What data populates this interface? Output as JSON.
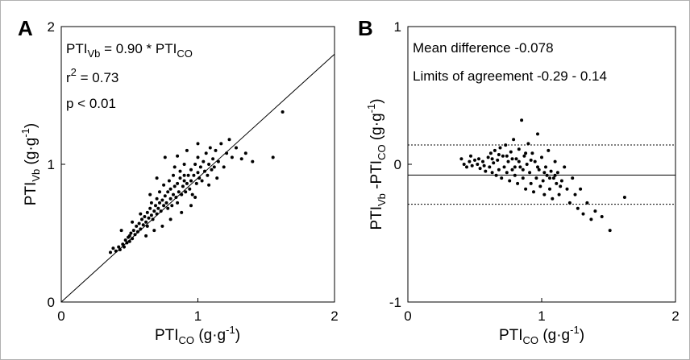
{
  "chart_data": [
    {
      "type": "scatter",
      "panel": "A",
      "xlabel": {
        "main": "PTI",
        "sub": "CO",
        "unit": " (g·g",
        "sup": "-1",
        "close": ")"
      },
      "ylabel": {
        "main": "PTI",
        "sub": "Vb",
        "unit": " (g·g",
        "sup": "-1",
        "close": ")"
      },
      "xlim": [
        0,
        2
      ],
      "ylim": [
        0,
        2
      ],
      "xticks": [
        "0",
        "1",
        "2"
      ],
      "yticks": [
        "0",
        "1",
        "2"
      ],
      "grid": false,
      "annotations": {
        "eq_a": "PTI",
        "eq_sub1": "Vb",
        "eq_b": " = 0.90 * PTI",
        "eq_sub2": "CO",
        "r2_a": "r",
        "r2_sup": "2",
        "r2_b": " = 0.73",
        "p": "p < 0.01"
      },
      "regression_slope": 0.9,
      "points": [
        [
          0.36,
          0.36
        ],
        [
          0.38,
          0.39
        ],
        [
          0.4,
          0.37
        ],
        [
          0.42,
          0.4
        ],
        [
          0.43,
          0.38
        ],
        [
          0.45,
          0.42
        ],
        [
          0.46,
          0.4
        ],
        [
          0.47,
          0.45
        ],
        [
          0.48,
          0.43
        ],
        [
          0.49,
          0.47
        ],
        [
          0.5,
          0.44
        ],
        [
          0.5,
          0.48
        ],
        [
          0.51,
          0.5
        ],
        [
          0.52,
          0.46
        ],
        [
          0.53,
          0.52
        ],
        [
          0.54,
          0.49
        ],
        [
          0.55,
          0.55
        ],
        [
          0.56,
          0.51
        ],
        [
          0.57,
          0.57
        ],
        [
          0.58,
          0.53
        ],
        [
          0.59,
          0.6
        ],
        [
          0.6,
          0.56
        ],
        [
          0.61,
          0.62
        ],
        [
          0.62,
          0.58
        ],
        [
          0.63,
          0.65
        ],
        [
          0.63,
          0.55
        ],
        [
          0.64,
          0.61
        ],
        [
          0.65,
          0.68
        ],
        [
          0.66,
          0.63
        ],
        [
          0.66,
          0.72
        ],
        [
          0.67,
          0.6
        ],
        [
          0.68,
          0.66
        ],
        [
          0.69,
          0.7
        ],
        [
          0.7,
          0.64
        ],
        [
          0.7,
          0.75
        ],
        [
          0.71,
          0.68
        ],
        [
          0.72,
          0.72
        ],
        [
          0.72,
          0.8
        ],
        [
          0.73,
          0.66
        ],
        [
          0.74,
          0.74
        ],
        [
          0.75,
          0.7
        ],
        [
          0.75,
          0.85
        ],
        [
          0.76,
          0.77
        ],
        [
          0.77,
          0.72
        ],
        [
          0.78,
          0.8
        ],
        [
          0.78,
          0.68
        ],
        [
          0.79,
          0.88
        ],
        [
          0.8,
          0.75
        ],
        [
          0.8,
          0.82
        ],
        [
          0.81,
          0.7
        ],
        [
          0.82,
          0.78
        ],
        [
          0.82,
          0.92
        ],
        [
          0.83,
          0.84
        ],
        [
          0.84,
          0.76
        ],
        [
          0.85,
          0.86
        ],
        [
          0.85,
          0.72
        ],
        [
          0.86,
          0.8
        ],
        [
          0.87,
          0.9
        ],
        [
          0.87,
          0.95
        ],
        [
          0.88,
          0.78
        ],
        [
          0.89,
          0.84
        ],
        [
          0.9,
          0.88
        ],
        [
          0.9,
          1.0
        ],
        [
          0.91,
          0.8
        ],
        [
          0.92,
          0.86
        ],
        [
          0.93,
          0.92
        ],
        [
          0.94,
          0.82
        ],
        [
          0.95,
          0.96
        ],
        [
          0.95,
          0.88
        ],
        [
          0.96,
          0.78
        ],
        [
          0.97,
          0.92
        ],
        [
          0.98,
          1.0
        ],
        [
          0.99,
          0.86
        ],
        [
          1.0,
          0.94
        ],
        [
          1.0,
          1.05
        ],
        [
          1.01,
          0.9
        ],
        [
          1.02,
          0.98
        ],
        [
          1.03,
          0.88
        ],
        [
          1.04,
          1.02
        ],
        [
          1.05,
          0.95
        ],
        [
          1.06,
          1.08
        ],
        [
          1.07,
          0.92
        ],
        [
          1.08,
          1.0
        ],
        [
          1.09,
          1.12
        ],
        [
          1.1,
          0.96
        ],
        [
          1.11,
          1.04
        ],
        [
          1.12,
          0.98
        ],
        [
          1.13,
          1.1
        ],
        [
          1.15,
          1.02
        ],
        [
          1.17,
          1.15
        ],
        [
          1.19,
          0.98
        ],
        [
          1.21,
          1.08
        ],
        [
          1.23,
          1.18
        ],
        [
          1.25,
          1.05
        ],
        [
          1.28,
          1.12
        ],
        [
          1.32,
          1.04
        ],
        [
          1.35,
          1.08
        ],
        [
          1.4,
          1.02
        ],
        [
          1.55,
          1.05
        ],
        [
          1.62,
          1.38
        ],
        [
          0.44,
          0.52
        ],
        [
          0.52,
          0.58
        ],
        [
          0.58,
          0.64
        ],
        [
          0.65,
          0.78
        ],
        [
          0.7,
          0.9
        ],
        [
          0.76,
          1.05
        ],
        [
          0.85,
          1.06
        ],
        [
          0.92,
          1.1
        ],
        [
          1.0,
          1.15
        ],
        [
          0.95,
          0.7
        ],
        [
          0.88,
          0.65
        ],
        [
          0.8,
          0.6
        ],
        [
          0.74,
          0.55
        ],
        [
          0.68,
          0.52
        ],
        [
          0.62,
          0.48
        ],
        [
          0.98,
          0.76
        ],
        [
          1.08,
          0.85
        ],
        [
          1.14,
          0.9
        ],
        [
          0.83,
          0.98
        ],
        [
          0.9,
          0.92
        ]
      ]
    },
    {
      "type": "scatter",
      "panel": "B",
      "xlabel": {
        "main": "PTI",
        "sub": "CO",
        "unit": " (g·g",
        "sup": "-1",
        "close": ")"
      },
      "ylabel": {
        "main": "PTI",
        "sub": "Vb",
        "mid": " -PTI",
        "sub2": "CO",
        "unit": " (g·g",
        "sup": "-1",
        "close": ")"
      },
      "xlim": [
        0,
        2
      ],
      "ylim": [
        -1,
        1
      ],
      "xticks": [
        "0",
        "1",
        "2"
      ],
      "yticks": [
        "-1",
        "0",
        "1"
      ],
      "grid": false,
      "annotations": {
        "mean": "Mean difference -0.078",
        "limits": "Limits of agreement -0.29 - 0.14"
      },
      "mean_difference": -0.078,
      "limits_of_agreement": [
        -0.29,
        0.14
      ],
      "points": [
        [
          0.4,
          0.04
        ],
        [
          0.42,
          0.0
        ],
        [
          0.44,
          -0.02
        ],
        [
          0.46,
          0.02
        ],
        [
          0.48,
          -0.01
        ],
        [
          0.5,
          0.03
        ],
        [
          0.52,
          0.0
        ],
        [
          0.54,
          -0.03
        ],
        [
          0.56,
          0.02
        ],
        [
          0.58,
          -0.05
        ],
        [
          0.6,
          0.05
        ],
        [
          0.61,
          -0.02
        ],
        [
          0.62,
          0.08
        ],
        [
          0.63,
          -0.06
        ],
        [
          0.64,
          0.01
        ],
        [
          0.65,
          0.1
        ],
        [
          0.66,
          -0.08
        ],
        [
          0.67,
          0.03
        ],
        [
          0.68,
          -0.04
        ],
        [
          0.69,
          0.12
        ],
        [
          0.7,
          -0.1
        ],
        [
          0.71,
          0.06
        ],
        [
          0.72,
          -0.02
        ],
        [
          0.73,
          0.14
        ],
        [
          0.74,
          -0.06
        ],
        [
          0.75,
          0.02
        ],
        [
          0.76,
          -0.12
        ],
        [
          0.77,
          0.09
        ],
        [
          0.78,
          -0.04
        ],
        [
          0.79,
          0.18
        ],
        [
          0.8,
          -0.08
        ],
        [
          0.81,
          0.04
        ],
        [
          0.82,
          -0.14
        ],
        [
          0.83,
          0.11
        ],
        [
          0.84,
          -0.02
        ],
        [
          0.85,
          0.32
        ],
        [
          0.86,
          -0.1
        ],
        [
          0.87,
          0.06
        ],
        [
          0.88,
          -0.18
        ],
        [
          0.89,
          0.0
        ],
        [
          0.9,
          0.15
        ],
        [
          0.91,
          -0.06
        ],
        [
          0.92,
          -0.14
        ],
        [
          0.93,
          0.08
        ],
        [
          0.94,
          -0.2
        ],
        [
          0.95,
          0.02
        ],
        [
          0.96,
          -0.1
        ],
        [
          0.97,
          0.22
        ],
        [
          0.98,
          -0.04
        ],
        [
          0.99,
          -0.16
        ],
        [
          1.0,
          0.05
        ],
        [
          1.01,
          -0.12
        ],
        [
          1.02,
          -0.22
        ],
        [
          1.03,
          -0.02
        ],
        [
          1.04,
          -0.08
        ],
        [
          1.05,
          0.1
        ],
        [
          1.06,
          -0.18
        ],
        [
          1.07,
          -0.05
        ],
        [
          1.08,
          -0.25
        ],
        [
          1.09,
          -0.1
        ],
        [
          1.1,
          0.02
        ],
        [
          1.11,
          -0.14
        ],
        [
          1.12,
          -0.06
        ],
        [
          1.13,
          -0.22
        ],
        [
          1.15,
          -0.12
        ],
        [
          1.17,
          -0.02
        ],
        [
          1.19,
          -0.18
        ],
        [
          1.21,
          -0.28
        ],
        [
          1.23,
          -0.1
        ],
        [
          1.25,
          -0.22
        ],
        [
          1.27,
          -0.32
        ],
        [
          1.29,
          -0.18
        ],
        [
          1.31,
          -0.36
        ],
        [
          1.34,
          -0.28
        ],
        [
          1.37,
          -0.4
        ],
        [
          1.4,
          -0.34
        ],
        [
          1.45,
          -0.38
        ],
        [
          1.51,
          -0.48
        ],
        [
          1.62,
          -0.24
        ],
        [
          0.47,
          0.06
        ],
        [
          0.53,
          0.04
        ],
        [
          0.57,
          -0.01
        ],
        [
          0.63,
          0.04
        ],
        [
          0.68,
          0.07
        ],
        [
          0.74,
          0.06
        ],
        [
          0.78,
          0.04
        ],
        [
          0.83,
          0.02
        ],
        [
          0.88,
          0.08
        ],
        [
          0.92,
          0.03
        ],
        [
          0.97,
          -0.02
        ],
        [
          1.02,
          -0.06
        ],
        [
          1.06,
          -0.1
        ],
        [
          1.1,
          -0.08
        ],
        [
          1.14,
          -0.16
        ],
        [
          0.86,
          -0.04
        ],
        [
          0.8,
          -0.02
        ]
      ]
    }
  ]
}
